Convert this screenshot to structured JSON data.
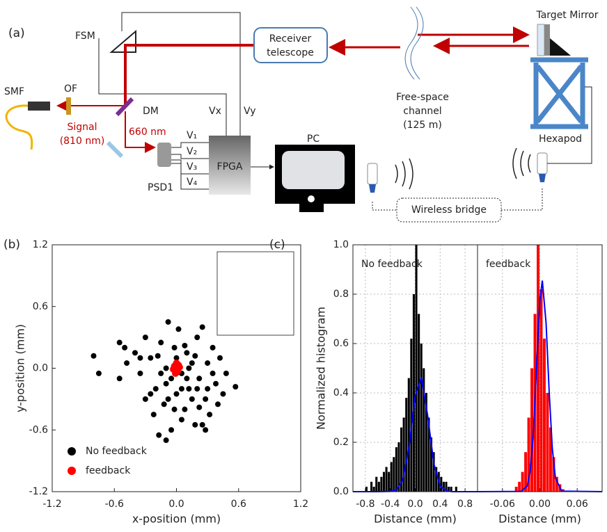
{
  "diagram": {
    "panel_label": "(a)",
    "fsm": "FSM",
    "telescope": [
      "Receiver",
      "telescope"
    ],
    "target": "Target Mirror",
    "smf": "SMF",
    "of": "OF",
    "dm": "DM",
    "signal": [
      "Signal",
      "(810 nm)"
    ],
    "beacon": "660 nm",
    "vx": "Vx",
    "vy": "Vy",
    "v": [
      "V₁",
      "V₂",
      "V₃",
      "V₄"
    ],
    "psd": "PSD1",
    "fpga": "FPGA",
    "pc": "PC",
    "channel": [
      "Free-space",
      "channel",
      "(125 m)"
    ],
    "hexapod": "Hexapod",
    "wireless": "Wireless bridge"
  },
  "chart_data": [
    {
      "type": "scatter",
      "panel_label": "(b)",
      "xlabel": "x-position (mm)",
      "ylabel": "y-position (mm)",
      "xlim": [
        -1.2,
        1.2
      ],
      "ylim": [
        -1.2,
        1.2
      ],
      "xticks": [
        -1.2,
        -0.6,
        {
          "value": 0,
          "label": "0.0"
        },
        0.6,
        1.2
      ],
      "yticks": [
        -1.2,
        -0.6,
        {
          "value": 0,
          "label": "0.0"
        },
        0.6,
        1.2
      ],
      "grid": false,
      "legend": "lower left",
      "series": [
        {
          "name": "No feedback",
          "color": "#000000",
          "x": [
            -0.8,
            -0.75,
            -0.55,
            -0.5,
            -0.48,
            -0.55,
            -0.4,
            -0.35,
            -0.3,
            -0.25,
            -0.2,
            -0.15,
            -0.12,
            -0.1,
            -0.08,
            -0.05,
            -0.02,
            0.0,
            0.02,
            0.05,
            0.08,
            0.1,
            0.12,
            0.15,
            0.18,
            0.2,
            0.22,
            0.25,
            0.28,
            0.3,
            0.32,
            0.35,
            0.38,
            0.4,
            0.42,
            0.45,
            0.48,
            0.57,
            -0.3,
            -0.22,
            -0.05,
            0.05,
            0.15,
            0.25,
            0.1,
            -0.1,
            0.0,
            0.05,
            0.2,
            -0.15,
            -0.25,
            0.3,
            0.12,
            -0.08,
            0.18,
            -0.18,
            0.35,
            -0.35,
            -0.1,
            -0.17,
            0.28,
            0.0,
            0.08,
            -0.02,
            0.22
          ],
          "values": [
            0.12,
            -0.05,
            0.25,
            0.2,
            0.05,
            -0.1,
            0.15,
            -0.05,
            0.3,
            0.1,
            -0.2,
            0.25,
            -0.35,
            0.0,
            0.45,
            -0.1,
            0.2,
            -0.25,
            0.38,
            -0.05,
            -0.4,
            0.15,
            -0.2,
            0.05,
            -0.55,
            0.3,
            -0.1,
            0.4,
            -0.3,
            0.05,
            -0.45,
            0.2,
            -0.15,
            -0.35,
            0.1,
            -0.25,
            -0.05,
            -0.18,
            -0.3,
            -0.45,
            -0.6,
            -0.5,
            -0.3,
            -0.55,
            -0.1,
            -0.15,
            -0.05,
            -0.2,
            -0.2,
            -0.05,
            -0.25,
            -0.2,
            0.0,
            -0.3,
            0.12,
            0.12,
            -0.05,
            0.1,
            -0.7,
            -0.65,
            -0.6,
            0.1,
            0.22,
            -0.4,
            -0.38
          ]
        },
        {
          "name": "feedback",
          "color": "#ff0000",
          "x": [
            0,
            0.02,
            -0.02,
            0.01,
            -0.03,
            0.03,
            0,
            -0.01
          ],
          "values": [
            0,
            0.03,
            0.02,
            -0.03,
            -0.01,
            0.01,
            0.05,
            -0.05
          ]
        }
      ]
    },
    {
      "type": "histogram",
      "panel_label": "(c)",
      "annotation": "No feedback",
      "xlabel": "Distance (mm)",
      "ylabel": "Normalized histogram",
      "xlim": [
        -1,
        1
      ],
      "ylim": [
        0,
        1
      ],
      "xticks": [
        -0.8,
        -0.4,
        {
          "value": 0,
          "label": "0.0"
        },
        0.4,
        0.8
      ],
      "yticks": [
        {
          "value": 0,
          "label": "0.0"
        },
        0.2,
        0.4,
        0.6,
        0.8,
        {
          "value": 1,
          "label": "1.0"
        }
      ],
      "grid": true,
      "color": "#000000",
      "bins": [
        -0.8,
        -0.76,
        -0.72,
        -0.68,
        -0.64,
        -0.6,
        -0.56,
        -0.52,
        -0.48,
        -0.44,
        -0.4,
        -0.36,
        -0.32,
        -0.28,
        -0.24,
        -0.2,
        -0.16,
        -0.12,
        -0.08,
        -0.04,
        0,
        0.04,
        0.08,
        0.12,
        0.16,
        0.2,
        0.24,
        0.28,
        0.32,
        0.36,
        0.4,
        0.44,
        0.48,
        0.52,
        0.56,
        0.6,
        0.64,
        0.68,
        0.72,
        0.76,
        0.8
      ],
      "values": [
        0.02,
        0,
        0.04,
        0.02,
        0.06,
        0.04,
        0.06,
        0.08,
        0.1,
        0.08,
        0.12,
        0.14,
        0.18,
        0.2,
        0.26,
        0.3,
        0.38,
        0.46,
        0.62,
        0.8,
        1.0,
        0.72,
        0.6,
        0.5,
        0.4,
        0.3,
        0.22,
        0.16,
        0.1,
        0.08,
        0.06,
        0.04,
        0.04,
        0.02,
        0.02,
        0,
        0.02,
        0,
        0,
        0
      ],
      "fit": {
        "color": "#0000ff",
        "x": [
          -1,
          -0.6,
          -0.4,
          -0.3,
          -0.2,
          -0.1,
          0,
          0.1,
          0.2,
          0.3,
          0.4,
          0.5,
          0.6,
          1
        ],
        "values": [
          0,
          0,
          0.001,
          0.007,
          0.046,
          0.18,
          0.389,
          0.464,
          0.307,
          0.112,
          0.023,
          0.003,
          0,
          0
        ]
      }
    },
    {
      "type": "histogram",
      "annotation": "feedback",
      "xlabel": "Distance (mm)",
      "xlim": [
        -0.1,
        0.1
      ],
      "ylim": [
        0,
        1
      ],
      "xticks": [
        -0.06,
        {
          "value": 0,
          "label": "0.00"
        },
        0.06
      ],
      "grid": true,
      "color": "#ff0000",
      "bins": [
        -0.04,
        -0.035,
        -0.03,
        -0.025,
        -0.02,
        -0.015,
        -0.01,
        -0.005,
        0,
        0.005,
        0.01,
        0.015,
        0.02,
        0.025,
        0.03,
        0.035,
        0.04
      ],
      "values": [
        0.02,
        0.04,
        0.08,
        0.16,
        0.3,
        0.5,
        0.72,
        1.0,
        0.82,
        0.62,
        0.4,
        0.26,
        0.14,
        0.06,
        0.03,
        0.01
      ],
      "fit": {
        "color": "#0000ff",
        "x": [
          -0.1,
          -0.03,
          -0.02,
          -0.015,
          -0.01,
          -0.005,
          0,
          0.004,
          0.01,
          0.015,
          0.02,
          0.025,
          0.035,
          0.1
        ],
        "values": [
          0,
          0.001,
          0.024,
          0.092,
          0.255,
          0.519,
          0.775,
          0.855,
          0.684,
          0.405,
          0.176,
          0.056,
          0.002,
          0
        ]
      }
    }
  ]
}
